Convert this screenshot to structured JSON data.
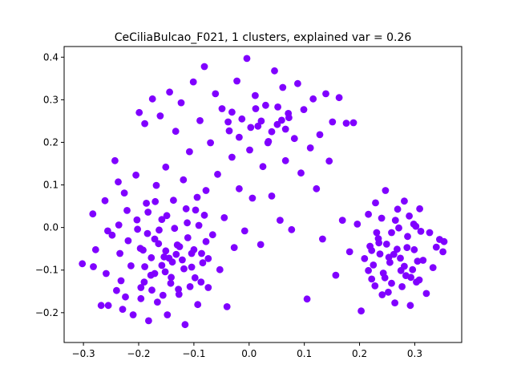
{
  "chart_data": {
    "type": "scatter",
    "title": "CeCiliaBulcao_F021, 1 clusters, explained var = 0.26",
    "xlabel": "",
    "ylabel": "",
    "xlim": [
      -0.335,
      0.385
    ],
    "ylim": [
      -0.27,
      0.425
    ],
    "xticks": [
      -0.3,
      -0.2,
      -0.1,
      0.0,
      0.1,
      0.2,
      0.3
    ],
    "xtick_labels": [
      "−0.3",
      "−0.2",
      "−0.1",
      "0.0",
      "0.1",
      "0.2",
      "0.3"
    ],
    "yticks": [
      -0.2,
      -0.1,
      0.0,
      0.1,
      0.2,
      0.3,
      0.4
    ],
    "ytick_labels": [
      "−0.2",
      "−0.1",
      "0.0",
      "0.1",
      "0.2",
      "0.3",
      "0.4"
    ],
    "grid": false,
    "marker_color": "#8000ff",
    "series": [
      {
        "points": [
          [
            -0.302,
            -0.085
          ],
          [
            -0.283,
            0.032
          ],
          [
            -0.282,
            -0.092
          ],
          [
            -0.278,
            -0.052
          ],
          [
            -0.268,
            -0.183
          ],
          [
            -0.261,
            0.063
          ],
          [
            -0.259,
            -0.108
          ],
          [
            -0.256,
            -0.008
          ],
          [
            -0.255,
            -0.183
          ],
          [
            -0.248,
            -0.018
          ],
          [
            -0.243,
            0.157
          ],
          [
            -0.24,
            -0.148
          ],
          [
            -0.237,
            0.107
          ],
          [
            -0.236,
            0.006
          ],
          [
            -0.234,
            -0.061
          ],
          [
            -0.232,
            -0.125
          ],
          [
            -0.229,
            -0.192
          ],
          [
            -0.226,
            0.081
          ],
          [
            -0.224,
            -0.163
          ],
          [
            -0.221,
            0.04
          ],
          [
            -0.219,
            -0.031
          ],
          [
            -0.214,
            -0.09
          ],
          [
            -0.21,
            -0.205
          ],
          [
            -0.205,
            0.123
          ],
          [
            -0.202,
            -0.004
          ],
          [
            -0.199,
            0.27
          ],
          [
            -0.196,
            -0.141
          ],
          [
            -0.192,
            -0.053
          ],
          [
            -0.189,
            0.244
          ],
          [
            -0.186,
            0.057
          ],
          [
            -0.182,
            -0.219
          ],
          [
            -0.178,
            -0.112
          ],
          [
            -0.175,
            0.302
          ],
          [
            -0.171,
            -0.027
          ],
          [
            -0.168,
            0.099
          ],
          [
            -0.166,
            -0.175
          ],
          [
            -0.161,
            0.262
          ],
          [
            -0.158,
            0.019
          ],
          [
            -0.154,
            -0.069
          ],
          [
            -0.151,
            0.142
          ],
          [
            -0.148,
            -0.205
          ],
          [
            -0.144,
            0.318
          ],
          [
            -0.141,
            -0.117
          ],
          [
            -0.137,
            0.064
          ],
          [
            -0.133,
            0.226
          ],
          [
            -0.13,
            -0.041
          ],
          [
            -0.127,
            -0.157
          ],
          [
            -0.123,
            0.293
          ],
          [
            -0.119,
            0.112
          ],
          [
            -0.116,
            -0.228
          ],
          [
            -0.112,
            0.011
          ],
          [
            -0.108,
            0.178
          ],
          [
            -0.104,
            -0.093
          ],
          [
            -0.101,
            0.342
          ],
          [
            -0.097,
            0.041
          ],
          [
            -0.093,
            -0.181
          ],
          [
            -0.089,
            0.251
          ],
          [
            -0.086,
            -0.061
          ],
          [
            -0.081,
            0.378
          ],
          [
            -0.078,
            0.087
          ],
          [
            -0.074,
            -0.141
          ],
          [
            -0.07,
            0.199
          ],
          [
            -0.066,
            -0.017
          ],
          [
            -0.061,
            0.314
          ],
          [
            -0.057,
            0.125
          ],
          [
            -0.053,
            -0.099
          ],
          [
            -0.049,
            0.279
          ],
          [
            -0.045,
            0.023
          ],
          [
            -0.04,
            -0.186
          ],
          [
            -0.036,
            0.227
          ],
          [
            -0.031,
            0.165
          ],
          [
            -0.027,
            -0.047
          ],
          [
            -0.022,
            0.344
          ],
          [
            -0.018,
            0.091
          ],
          [
            -0.013,
            0.255
          ],
          [
            -0.008,
            -0.008
          ],
          [
            -0.004,
            0.397
          ],
          [
            0.001,
            0.182
          ],
          [
            0.006,
            0.069
          ],
          [
            0.011,
            0.31
          ],
          [
            0.016,
            0.238
          ],
          [
            0.021,
            -0.04
          ],
          [
            0.025,
            0.143
          ],
          [
            0.03,
            0.287
          ],
          [
            0.035,
            0.202
          ],
          [
            0.041,
            0.074
          ],
          [
            0.046,
            0.368
          ],
          [
            0.051,
            0.242
          ],
          [
            0.056,
            0.017
          ],
          [
            0.061,
            0.329
          ],
          [
            0.066,
            0.157
          ],
          [
            0.072,
            0.258
          ],
          [
            0.077,
            -0.005
          ],
          [
            0.082,
            0.209
          ],
          [
            0.088,
            0.338
          ],
          [
            0.094,
            0.128
          ],
          [
            0.099,
            0.277
          ],
          [
            0.105,
            -0.168
          ],
          [
            0.111,
            0.187
          ],
          [
            0.116,
            0.302
          ],
          [
            0.122,
            0.091
          ],
          [
            0.128,
            0.218
          ],
          [
            0.133,
            -0.027
          ],
          [
            0.139,
            0.314
          ],
          [
            0.145,
            0.156
          ],
          [
            0.151,
            0.248
          ],
          [
            0.157,
            -0.112
          ],
          [
            0.163,
            0.305
          ],
          [
            0.169,
            0.017
          ],
          [
            0.176,
            0.245
          ],
          [
            0.182,
            -0.057
          ],
          [
            0.189,
            0.246
          ],
          [
            0.196,
            0.008
          ],
          [
            0.203,
            -0.196
          ],
          [
            0.209,
            -0.073
          ],
          [
            0.216,
            0.031
          ],
          [
            0.222,
            -0.121
          ],
          [
            0.229,
            0.058
          ],
          [
            0.235,
            -0.036
          ],
          [
            0.241,
            -0.158
          ],
          [
            0.247,
            0.087
          ],
          [
            0.253,
            -0.07
          ],
          [
            0.258,
            -0.012
          ],
          [
            0.264,
            -0.177
          ],
          [
            0.269,
            0.043
          ],
          [
            0.275,
            -0.101
          ],
          [
            0.281,
            0.062
          ],
          [
            0.286,
            -0.047
          ],
          [
            0.292,
            -0.183
          ],
          [
            0.298,
            0.008
          ],
          [
            0.303,
            -0.128
          ],
          [
            0.309,
            0.044
          ],
          [
            0.315,
            -0.077
          ],
          [
            0.321,
            -0.155
          ],
          [
            0.327,
            -0.012
          ],
          [
            0.333,
            -0.094
          ],
          [
            0.339,
            -0.046
          ],
          [
            0.345,
            -0.028
          ],
          [
            0.351,
            -0.057
          ],
          [
            0.353,
            -0.033
          ],
          [
            -0.145,
            -0.072
          ],
          [
            -0.139,
            -0.081
          ],
          [
            -0.151,
            -0.055
          ],
          [
            -0.132,
            -0.063
          ],
          [
            -0.158,
            -0.089
          ],
          [
            -0.126,
            -0.045
          ],
          [
            -0.164,
            -0.038
          ],
          [
            -0.118,
            -0.097
          ],
          [
            -0.171,
            -0.108
          ],
          [
            -0.111,
            -0.024
          ],
          [
            -0.177,
            -0.071
          ],
          [
            -0.104,
            -0.061
          ],
          [
            -0.184,
            -0.014
          ],
          [
            -0.098,
            -0.118
          ],
          [
            -0.19,
            -0.128
          ],
          [
            -0.091,
            0.005
          ],
          [
            -0.197,
            -0.049
          ],
          [
            -0.084,
            -0.083
          ],
          [
            -0.203,
            0.018
          ],
          [
            -0.078,
            -0.033
          ],
          [
            -0.142,
            -0.131
          ],
          [
            -0.135,
            -0.002
          ],
          [
            -0.128,
            -0.145
          ],
          [
            -0.149,
            0.028
          ],
          [
            -0.121,
            -0.076
          ],
          [
            -0.156,
            -0.159
          ],
          [
            -0.114,
            0.044
          ],
          [
            -0.163,
            -0.006
          ],
          [
            -0.107,
            -0.139
          ],
          [
            -0.17,
            0.061
          ],
          [
            -0.1,
            -0.052
          ],
          [
            -0.176,
            -0.147
          ],
          [
            -0.094,
            0.071
          ],
          [
            -0.183,
            0.036
          ],
          [
            -0.087,
            -0.128
          ],
          [
            -0.189,
            -0.092
          ],
          [
            -0.081,
            0.029
          ],
          [
            -0.196,
            -0.167
          ],
          [
            -0.074,
            -0.073
          ],
          [
            -0.152,
            -0.104
          ],
          [
            0.262,
            -0.063
          ],
          [
            0.268,
            -0.051
          ],
          [
            0.255,
            -0.082
          ],
          [
            0.274,
            -0.072
          ],
          [
            0.249,
            -0.039
          ],
          [
            0.281,
            -0.091
          ],
          [
            0.243,
            -0.107
          ],
          [
            0.287,
            -0.021
          ],
          [
            0.237,
            -0.062
          ],
          [
            0.293,
            -0.117
          ],
          [
            0.231,
            -0.012
          ],
          [
            0.299,
            -0.052
          ],
          [
            0.225,
            -0.088
          ],
          [
            0.305,
            -0.079
          ],
          [
            0.219,
            -0.044
          ],
          [
            0.311,
            -0.009
          ],
          [
            0.258,
            -0.131
          ],
          [
            0.265,
            0.017
          ],
          [
            0.252,
            -0.152
          ],
          [
            0.271,
            -0.001
          ],
          [
            0.246,
            -0.118
          ],
          [
            0.277,
            -0.139
          ],
          [
            0.24,
            0.022
          ],
          [
            0.284,
            -0.113
          ],
          [
            0.234,
            -0.026
          ],
          [
            0.29,
            0.027
          ],
          [
            0.228,
            -0.137
          ],
          [
            0.296,
            -0.099
          ],
          [
            0.222,
            -0.054
          ],
          [
            0.302,
            0.003
          ],
          [
            0.216,
            -0.101
          ],
          [
            0.308,
            -0.123
          ],
          [
            -0.038,
            0.248
          ],
          [
            -0.031,
            0.271
          ],
          [
            0.003,
            0.235
          ],
          [
            0.022,
            0.25
          ],
          [
            0.041,
            0.225
          ],
          [
            0.059,
            0.252
          ],
          [
            0.071,
            0.268
          ],
          [
            -0.018,
            0.212
          ],
          [
            0.012,
            0.279
          ],
          [
            0.034,
            0.199
          ],
          [
            0.052,
            0.283
          ],
          [
            0.066,
            0.231
          ]
        ]
      }
    ]
  }
}
